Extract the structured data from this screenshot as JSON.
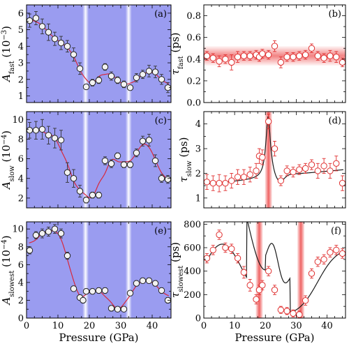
{
  "colors": {
    "panel_bg": "#9a9cf0",
    "fit_red": "#d8283c",
    "fit_black": "#1a1a1a",
    "marker_white": "#f2f2f2",
    "marker_red": "#e03030",
    "band_red": "#ee5a5a",
    "band_white": "#ffffff"
  },
  "chart_data": [
    {
      "id": "a",
      "type": "scatter",
      "panel_label": "(a)",
      "background": "blue",
      "ylabel_parts": [
        "A",
        "fast",
        " (10",
        "−3",
        ")"
      ],
      "xlim": [
        0,
        46
      ],
      "ylim": [
        0.6,
        6.5
      ],
      "xticks": [
        0,
        10,
        20,
        30,
        40
      ],
      "yticks": [
        1,
        2,
        3,
        4,
        5,
        6
      ],
      "show_xticklabels": false,
      "bands": [
        {
          "x": 18.8,
          "color": "white"
        },
        {
          "x": 32.5,
          "color": "white"
        }
      ],
      "fit": "red",
      "series": [
        {
          "x": [
            1,
            3,
            5,
            7,
            9,
            11,
            13,
            15,
            17,
            19,
            21,
            23,
            25,
            27,
            29,
            31,
            33,
            35,
            37,
            39,
            41,
            43,
            45
          ],
          "y": [
            5.55,
            5.7,
            5.2,
            4.85,
            4.45,
            4.2,
            4.0,
            3.5,
            2.65,
            1.55,
            1.8,
            1.95,
            2.75,
            2.2,
            1.95,
            1.7,
            1.5,
            2.1,
            2.3,
            2.5,
            2.45,
            2.0,
            1.5
          ],
          "err": [
            0.4,
            0.4,
            0.45,
            0.5,
            0.4,
            0.4,
            0.35,
            0.4,
            0.35,
            0.15,
            0.2,
            0.2,
            0.2,
            0.25,
            0.2,
            0.2,
            0.15,
            0.25,
            0.25,
            0.35,
            0.35,
            0.3,
            0.3
          ]
        }
      ]
    },
    {
      "id": "b",
      "type": "scatter",
      "panel_label": "(b)",
      "background": "white",
      "ylabel_parts": [
        "τ",
        "fast",
        " (ps)"
      ],
      "xlim": [
        0,
        46
      ],
      "ylim": [
        0,
        0.9
      ],
      "xticks": [
        0,
        10,
        20,
        30,
        40
      ],
      "yticks": [
        0.0,
        0.2,
        0.4,
        0.6,
        0.8
      ],
      "ytick_labels": [
        "0.0",
        "0.2",
        "0.4",
        "0.6",
        "0.8"
      ],
      "show_xticklabels": false,
      "hband": {
        "y0": 0.34,
        "y1": 0.52
      },
      "series": [
        {
          "x": [
            1,
            3,
            5,
            7,
            9,
            11,
            13,
            15,
            17,
            18,
            19,
            21,
            23,
            25,
            27,
            29,
            31,
            33,
            35,
            37,
            39,
            41,
            43,
            45
          ],
          "y": [
            0.43,
            0.41,
            0.38,
            0.4,
            0.37,
            0.42,
            0.43,
            0.43,
            0.44,
            0.42,
            0.45,
            0.44,
            0.52,
            0.37,
            0.42,
            0.42,
            0.43,
            0.44,
            0.5,
            0.43,
            0.41,
            0.43,
            0.42,
            0.37
          ],
          "err": [
            0.04,
            0.04,
            0.05,
            0.04,
            0.07,
            0.05,
            0.04,
            0.04,
            0.04,
            0.04,
            0.04,
            0.04,
            0.05,
            0.05,
            0.04,
            0.04,
            0.04,
            0.04,
            0.04,
            0.04,
            0.04,
            0.05,
            0.05,
            0.04
          ]
        }
      ]
    },
    {
      "id": "c",
      "type": "scatter",
      "panel_label": "(c)",
      "background": "blue",
      "ylabel_parts": [
        "A",
        "slow",
        " (10",
        "−4",
        ")"
      ],
      "xlim": [
        0,
        46
      ],
      "ylim": [
        1.0,
        10.8
      ],
      "xticks": [
        0,
        10,
        20,
        30,
        40
      ],
      "yticks": [
        2,
        4,
        6,
        8,
        10
      ],
      "show_xticklabels": false,
      "bands": [
        {
          "x": 18.8,
          "color": "white"
        },
        {
          "x": 32.5,
          "color": "white"
        }
      ],
      "fit": "red",
      "series": [
        {
          "x": [
            1,
            3,
            5,
            7,
            9,
            11,
            13,
            15,
            17,
            19,
            21,
            23,
            25,
            27,
            29,
            31,
            33,
            35,
            37,
            39,
            41,
            43,
            45
          ],
          "y": [
            8.9,
            8.9,
            9.0,
            8.4,
            8.1,
            7.9,
            4.6,
            4.0,
            2.7,
            1.8,
            2.3,
            2.3,
            5.8,
            5.5,
            6.3,
            5.4,
            5.4,
            6.6,
            7.8,
            7.9,
            5.8,
            4.0,
            3.9
          ],
          "err": [
            0.8,
            0.9,
            1.0,
            0.9,
            1.0,
            1.0,
            1.0,
            0.9,
            0.6,
            0.3,
            0.3,
            0.3,
            0.4,
            0.4,
            0.3,
            0.3,
            0.3,
            0.4,
            0.5,
            0.6,
            0.6,
            0.4,
            0.4
          ]
        }
      ]
    },
    {
      "id": "d",
      "type": "scatter",
      "panel_label": "(d)",
      "background": "white",
      "ylabel_parts": [
        "τ",
        "slow",
        " (ps)"
      ],
      "xlim": [
        0,
        46
      ],
      "ylim": [
        0.6,
        4.5
      ],
      "xticks": [
        0,
        10,
        20,
        30,
        40
      ],
      "yticks": [
        1,
        2,
        3,
        4
      ],
      "show_xticklabels": false,
      "bands": [
        {
          "x": 21.0,
          "color": "red"
        }
      ],
      "fit": "black",
      "series": [
        {
          "x": [
            1,
            3,
            5,
            7,
            9,
            11,
            13,
            15,
            17,
            18,
            19,
            21,
            23,
            25,
            27,
            29,
            31,
            33,
            35,
            37,
            39,
            41,
            43,
            45
          ],
          "y": [
            1.65,
            1.6,
            1.6,
            1.6,
            1.7,
            1.85,
            1.85,
            1.95,
            2.1,
            2.7,
            2.65,
            4.1,
            3.0,
            1.7,
            2.1,
            2.05,
            2.15,
            2.2,
            2.35,
            2.1,
            2.3,
            2.1,
            2.4,
            1.6
          ],
          "err": [
            0.3,
            0.3,
            0.35,
            0.3,
            0.3,
            0.3,
            0.3,
            0.3,
            0.3,
            0.3,
            0.3,
            0.3,
            0.3,
            0.2,
            0.2,
            0.2,
            0.2,
            0.2,
            0.2,
            0.3,
            0.3,
            0.3,
            0.3,
            0.3
          ]
        }
      ]
    },
    {
      "id": "e",
      "type": "scatter",
      "panel_label": "(e)",
      "background": "blue",
      "ylabel_parts": [
        "A",
        "slowest",
        " (10",
        "−4",
        ")"
      ],
      "xlim": [
        0,
        46
      ],
      "ylim": [
        0,
        10.8
      ],
      "xticks": [
        0,
        10,
        20,
        30,
        40
      ],
      "xtick_labels": [
        "0",
        "10",
        "20",
        "30",
        "40"
      ],
      "yticks": [
        0,
        2,
        4,
        6,
        8,
        10
      ],
      "show_xticklabels": true,
      "xlabel": "Pressure (GPa)",
      "bands": [
        {
          "x": 18.8,
          "color": "white"
        },
        {
          "x": 32.5,
          "color": "white"
        }
      ],
      "fit": "red",
      "series": [
        {
          "x": [
            1,
            3,
            5,
            7,
            9,
            11,
            13,
            15,
            17,
            18,
            19,
            21,
            23,
            25,
            27,
            29,
            31,
            33,
            35,
            37,
            39,
            41,
            43,
            45
          ],
          "y": [
            7.6,
            9.3,
            9.5,
            9.7,
            10.0,
            9.5,
            7.0,
            3.3,
            2.3,
            2.0,
            3.0,
            3.0,
            3.1,
            3.1,
            1.1,
            1.0,
            1.0,
            2.8,
            3.9,
            4.2,
            4.2,
            3.9,
            3.1,
            2.0
          ],
          "err": [
            0.4,
            0.4,
            0.5,
            0.5,
            0.5,
            0.5,
            0.4,
            0.3,
            0.3,
            0.3,
            0.3,
            0.3,
            0.3,
            0.3,
            0.3,
            0.2,
            0.2,
            0.3,
            0.3,
            0.3,
            0.3,
            0.3,
            0.3,
            0.3
          ]
        }
      ]
    },
    {
      "id": "f",
      "type": "scatter",
      "panel_label": "(f)",
      "background": "white",
      "ylabel_parts": [
        "τ",
        "slowest",
        " (ps)"
      ],
      "xlim": [
        0,
        46
      ],
      "ylim": [
        0,
        820
      ],
      "xticks": [
        0,
        10,
        20,
        30,
        40
      ],
      "xtick_labels": [
        "0",
        "10",
        "20",
        "30",
        "40"
      ],
      "yticks": [
        0,
        200,
        400,
        600,
        800
      ],
      "show_xticklabels": true,
      "xlabel": "Pressure (GPa)",
      "bands": [
        {
          "x": 18.0,
          "color": "red"
        },
        {
          "x": 31.5,
          "color": "red"
        }
      ],
      "fit": "black",
      "series": [
        {
          "x": [
            1,
            3,
            5,
            7,
            9,
            11,
            13,
            15,
            17,
            18,
            19,
            21,
            23,
            25,
            27,
            29,
            31,
            33,
            35,
            37,
            39,
            41,
            43,
            45
          ],
          "y": [
            510,
            580,
            710,
            600,
            590,
            510,
            390,
            280,
            160,
            240,
            280,
            400,
            240,
            70,
            60,
            40,
            30,
            150,
            380,
            480,
            500,
            560,
            580,
            550
          ],
          "err": [
            40,
            40,
            40,
            40,
            40,
            40,
            50,
            50,
            40,
            40,
            40,
            40,
            40,
            30,
            30,
            30,
            30,
            40,
            40,
            40,
            40,
            40,
            40,
            40
          ]
        }
      ]
    }
  ]
}
